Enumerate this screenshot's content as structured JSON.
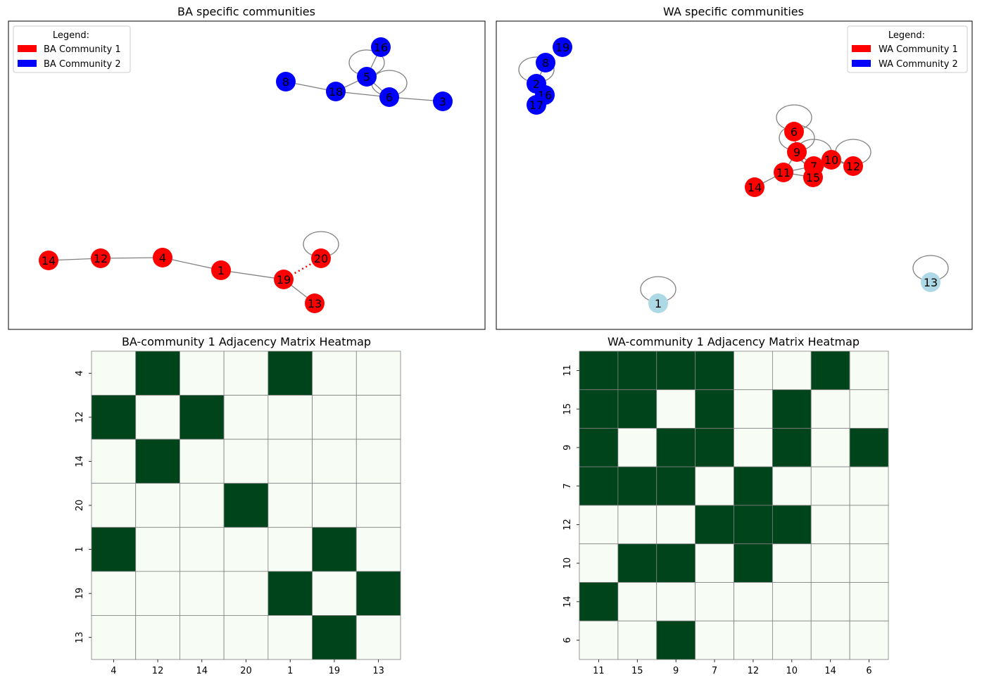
{
  "colors": {
    "community_1": "#ff0000",
    "community_2": "#0000ff",
    "unassigned": "#add8e6",
    "edge": "#808080",
    "heat_on": "#00441b",
    "heat_off": "#f7fcf5",
    "heat_grid": "#808080"
  },
  "chart_data": [
    {
      "type": "network",
      "title": "BA specific communities",
      "legend": {
        "title": "Legend:",
        "location": "top-left",
        "entries": [
          {
            "label": "BA Community 1",
            "color": "#ff0000"
          },
          {
            "label": "BA Community 2",
            "color": "#0000ff"
          }
        ]
      },
      "nodes": [
        {
          "id": "14",
          "community": 1
        },
        {
          "id": "12",
          "community": 1
        },
        {
          "id": "4",
          "community": 1
        },
        {
          "id": "1",
          "community": 1
        },
        {
          "id": "19",
          "community": 1
        },
        {
          "id": "20",
          "community": 1
        },
        {
          "id": "13",
          "community": 1
        },
        {
          "id": "8",
          "community": 2
        },
        {
          "id": "18",
          "community": 2
        },
        {
          "id": "5",
          "community": 2
        },
        {
          "id": "16",
          "community": 2
        },
        {
          "id": "6",
          "community": 2
        },
        {
          "id": "3",
          "community": 2
        }
      ],
      "edges": [
        [
          "14",
          "12"
        ],
        [
          "12",
          "4"
        ],
        [
          "4",
          "1"
        ],
        [
          "1",
          "19"
        ],
        [
          "19",
          "13"
        ],
        {
          "source": "19",
          "target": "20",
          "style": "dotted"
        },
        [
          "20",
          "20"
        ],
        [
          "8",
          "18"
        ],
        [
          "18",
          "5"
        ],
        [
          "18",
          "6"
        ],
        [
          "5",
          "16"
        ],
        [
          "5",
          "6"
        ],
        [
          "6",
          "3"
        ],
        [
          "5",
          "5"
        ],
        [
          "6",
          "6"
        ]
      ]
    },
    {
      "type": "network",
      "title": "WA specific communities",
      "legend": {
        "title": "Legend:",
        "location": "top-right",
        "entries": [
          {
            "label": "WA Community 1",
            "color": "#ff0000"
          },
          {
            "label": "WA Community 2",
            "color": "#0000ff"
          }
        ]
      },
      "nodes": [
        {
          "id": "19",
          "community": 2
        },
        {
          "id": "8",
          "community": 2
        },
        {
          "id": "2",
          "community": 2
        },
        {
          "id": "16",
          "community": 2
        },
        {
          "id": "17",
          "community": 2
        },
        {
          "id": "6",
          "community": 1
        },
        {
          "id": "9",
          "community": 1
        },
        {
          "id": "10",
          "community": 1
        },
        {
          "id": "7",
          "community": 1
        },
        {
          "id": "12",
          "community": 1
        },
        {
          "id": "11",
          "community": 1
        },
        {
          "id": "15",
          "community": 1
        },
        {
          "id": "14",
          "community": 1
        },
        {
          "id": "1",
          "community": 0
        },
        {
          "id": "13",
          "community": 0
        }
      ],
      "edges": [
        [
          "8",
          "2"
        ],
        [
          "2",
          "16"
        ],
        [
          "16",
          "17"
        ],
        [
          "2",
          "2"
        ],
        [
          "6",
          "9"
        ],
        [
          "9",
          "7"
        ],
        [
          "9",
          "15"
        ],
        [
          "9",
          "11"
        ],
        [
          "7",
          "10"
        ],
        [
          "10",
          "12"
        ],
        [
          "11",
          "15"
        ],
        [
          "11",
          "7"
        ],
        [
          "15",
          "10"
        ],
        [
          "11",
          "14"
        ],
        [
          "6",
          "6"
        ],
        [
          "9",
          "9"
        ],
        [
          "7",
          "7"
        ],
        [
          "12",
          "12"
        ],
        [
          "1",
          "1"
        ],
        [
          "13",
          "13"
        ]
      ]
    },
    {
      "type": "heatmap",
      "title": "BA-community 1 Adjacency Matrix Heatmap",
      "row_labels": [
        "4",
        "12",
        "14",
        "20",
        "1",
        "19",
        "13"
      ],
      "col_labels": [
        "4",
        "12",
        "14",
        "20",
        "1",
        "19",
        "13"
      ],
      "values": [
        [
          0,
          1,
          0,
          0,
          1,
          0,
          0
        ],
        [
          1,
          0,
          1,
          0,
          0,
          0,
          0
        ],
        [
          0,
          1,
          0,
          0,
          0,
          0,
          0
        ],
        [
          0,
          0,
          0,
          1,
          0,
          0,
          0
        ],
        [
          1,
          0,
          0,
          0,
          0,
          1,
          0
        ],
        [
          0,
          0,
          0,
          0,
          1,
          0,
          1
        ],
        [
          0,
          0,
          0,
          0,
          0,
          1,
          0
        ]
      ]
    },
    {
      "type": "heatmap",
      "title": "WA-community 1 Adjacency Matrix Heatmap",
      "row_labels": [
        "11",
        "15",
        "9",
        "7",
        "12",
        "10",
        "14",
        "6"
      ],
      "col_labels": [
        "11",
        "15",
        "9",
        "7",
        "12",
        "10",
        "14",
        "6"
      ],
      "values": [
        [
          1,
          1,
          1,
          1,
          0,
          0,
          1,
          0
        ],
        [
          1,
          1,
          0,
          1,
          0,
          1,
          0,
          0
        ],
        [
          1,
          0,
          1,
          1,
          0,
          1,
          0,
          1
        ],
        [
          1,
          1,
          1,
          0,
          1,
          0,
          0,
          0
        ],
        [
          0,
          0,
          0,
          1,
          1,
          1,
          0,
          0
        ],
        [
          0,
          1,
          1,
          0,
          1,
          0,
          0,
          0
        ],
        [
          1,
          0,
          0,
          0,
          0,
          0,
          0,
          0
        ],
        [
          0,
          0,
          1,
          0,
          0,
          0,
          0,
          0
        ]
      ]
    }
  ]
}
